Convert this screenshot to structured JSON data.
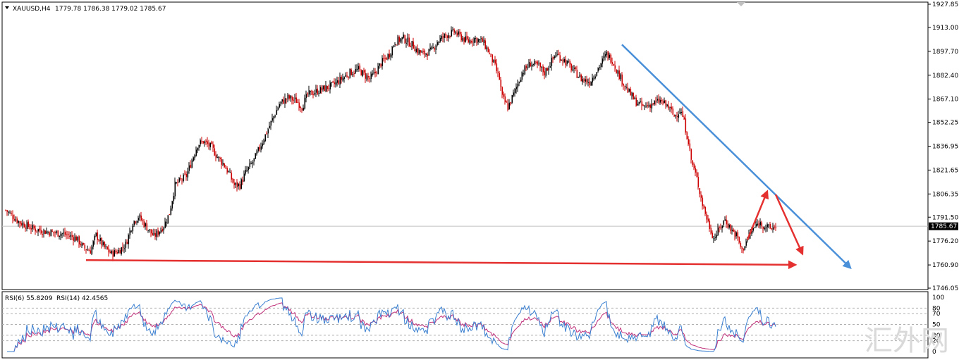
{
  "header": {
    "symbol": "XAUUSD,H4",
    "ohlc": "1779.78 1786.38 1779.02 1785.67"
  },
  "current_price_label": "1785.67",
  "rsi_header": {
    "rsi6": "RSI(6) 55.8209",
    "rsi14": "RSI(14) 42.4565"
  },
  "watermark": "汇外网",
  "colors": {
    "bull": "#000000",
    "bear": "#cc0000",
    "price_line": "#c0c0c0",
    "trendline": "#4a90d9",
    "support": "#e53030",
    "rsi6": "#3a7fd0",
    "rsi14": "#c0307a"
  },
  "chart_data": [
    {
      "type": "candlestick",
      "symbol": "XAUUSD",
      "timeframe": "H4",
      "ylim": [
        1746.05,
        1927.85
      ],
      "y_ticks": [
        "1927.85",
        "1913.00",
        "1897.70",
        "1882.40",
        "1867.10",
        "1852.25",
        "1836.95",
        "1821.65",
        "1806.35",
        "1791.50",
        "1776.20",
        "1760.90",
        "1746.05"
      ],
      "last_close": 1785.67,
      "path_points": [
        [
          0,
          1796
        ],
        [
          10,
          1788
        ],
        [
          20,
          1784
        ],
        [
          30,
          1782
        ],
        [
          40,
          1781
        ],
        [
          50,
          1778
        ],
        [
          55,
          1772
        ],
        [
          60,
          1770
        ],
        [
          64,
          1780
        ],
        [
          70,
          1772
        ],
        [
          75,
          1768
        ],
        [
          80,
          1770
        ],
        [
          85,
          1774
        ],
        [
          90,
          1788
        ],
        [
          94,
          1792
        ],
        [
          100,
          1785
        ],
        [
          105,
          1779
        ],
        [
          112,
          1786
        ],
        [
          116,
          1794
        ],
        [
          120,
          1812
        ],
        [
          128,
          1818
        ],
        [
          132,
          1828
        ],
        [
          136,
          1838
        ],
        [
          140,
          1840
        ],
        [
          146,
          1836
        ],
        [
          150,
          1830
        ],
        [
          154,
          1826
        ],
        [
          158,
          1820
        ],
        [
          162,
          1812
        ],
        [
          166,
          1812
        ],
        [
          170,
          1820
        ],
        [
          176,
          1828
        ],
        [
          182,
          1840
        ],
        [
          188,
          1852
        ],
        [
          194,
          1864
        ],
        [
          200,
          1868
        ],
        [
          206,
          1866
        ],
        [
          210,
          1862
        ],
        [
          214,
          1870
        ],
        [
          220,
          1872
        ],
        [
          226,
          1874
        ],
        [
          232,
          1876
        ],
        [
          238,
          1880
        ],
        [
          244,
          1884
        ],
        [
          250,
          1886
        ],
        [
          255,
          1882
        ],
        [
          258,
          1880
        ],
        [
          262,
          1884
        ],
        [
          266,
          1890
        ],
        [
          272,
          1896
        ],
        [
          276,
          1904
        ],
        [
          282,
          1906
        ],
        [
          288,
          1902
        ],
        [
          292,
          1898
        ],
        [
          296,
          1896
        ],
        [
          302,
          1898
        ],
        [
          306,
          1904
        ],
        [
          312,
          1908
        ],
        [
          318,
          1910
        ],
        [
          324,
          1906
        ],
        [
          328,
          1904
        ],
        [
          332,
          1906
        ],
        [
          338,
          1904
        ],
        [
          342,
          1898
        ],
        [
          346,
          1890
        ],
        [
          350,
          1880
        ],
        [
          352,
          1868
        ],
        [
          356,
          1862
        ],
        [
          360,
          1870
        ],
        [
          366,
          1884
        ],
        [
          372,
          1890
        ],
        [
          378,
          1888
        ],
        [
          382,
          1884
        ],
        [
          386,
          1890
        ],
        [
          390,
          1896
        ],
        [
          396,
          1892
        ],
        [
          402,
          1886
        ],
        [
          408,
          1880
        ],
        [
          414,
          1878
        ],
        [
          418,
          1884
        ],
        [
          422,
          1890
        ],
        [
          426,
          1896
        ],
        [
          430,
          1892
        ],
        [
          434,
          1884
        ],
        [
          440,
          1874
        ],
        [
          446,
          1866
        ],
        [
          452,
          1862
        ],
        [
          458,
          1864
        ],
        [
          464,
          1866
        ],
        [
          470,
          1862
        ],
        [
          474,
          1856
        ],
        [
          478,
          1860
        ],
        [
          480,
          1856
        ],
        [
          484,
          1840
        ],
        [
          486,
          1828
        ],
        [
          490,
          1816
        ],
        [
          494,
          1800
        ],
        [
          498,
          1788
        ],
        [
          502,
          1778
        ],
        [
          506,
          1784
        ],
        [
          510,
          1790
        ],
        [
          514,
          1784
        ],
        [
          518,
          1780
        ],
        [
          522,
          1770
        ],
        [
          526,
          1778
        ],
        [
          530,
          1784
        ],
        [
          534,
          1788
        ],
        [
          538,
          1786
        ],
        [
          542,
          1784
        ],
        [
          546,
          1786
        ]
      ],
      "rsi": {
        "params": [
          6,
          14
        ],
        "values_shown": {
          "rsi6": 55.8209,
          "rsi14": 42.4565
        },
        "ylim": [
          0,
          100
        ],
        "y_ticks": [
          "100",
          "80",
          "70",
          "50",
          "30",
          "20",
          "0"
        ],
        "levels": [
          80,
          70,
          50,
          30,
          20
        ]
      },
      "annotations": [
        {
          "kind": "trendline",
          "from": [
            437,
            1902
          ],
          "to": [
            599,
            1759
          ]
        },
        {
          "kind": "support-line",
          "from": [
            57,
            1764
          ],
          "to": [
            560,
            1761
          ]
        },
        {
          "kind": "arrow",
          "from": [
            526,
            1777
          ],
          "to": [
            540,
            1808
          ]
        },
        {
          "kind": "arrow",
          "from": [
            546,
            1806
          ],
          "to": [
            565,
            1768
          ]
        }
      ]
    }
  ]
}
